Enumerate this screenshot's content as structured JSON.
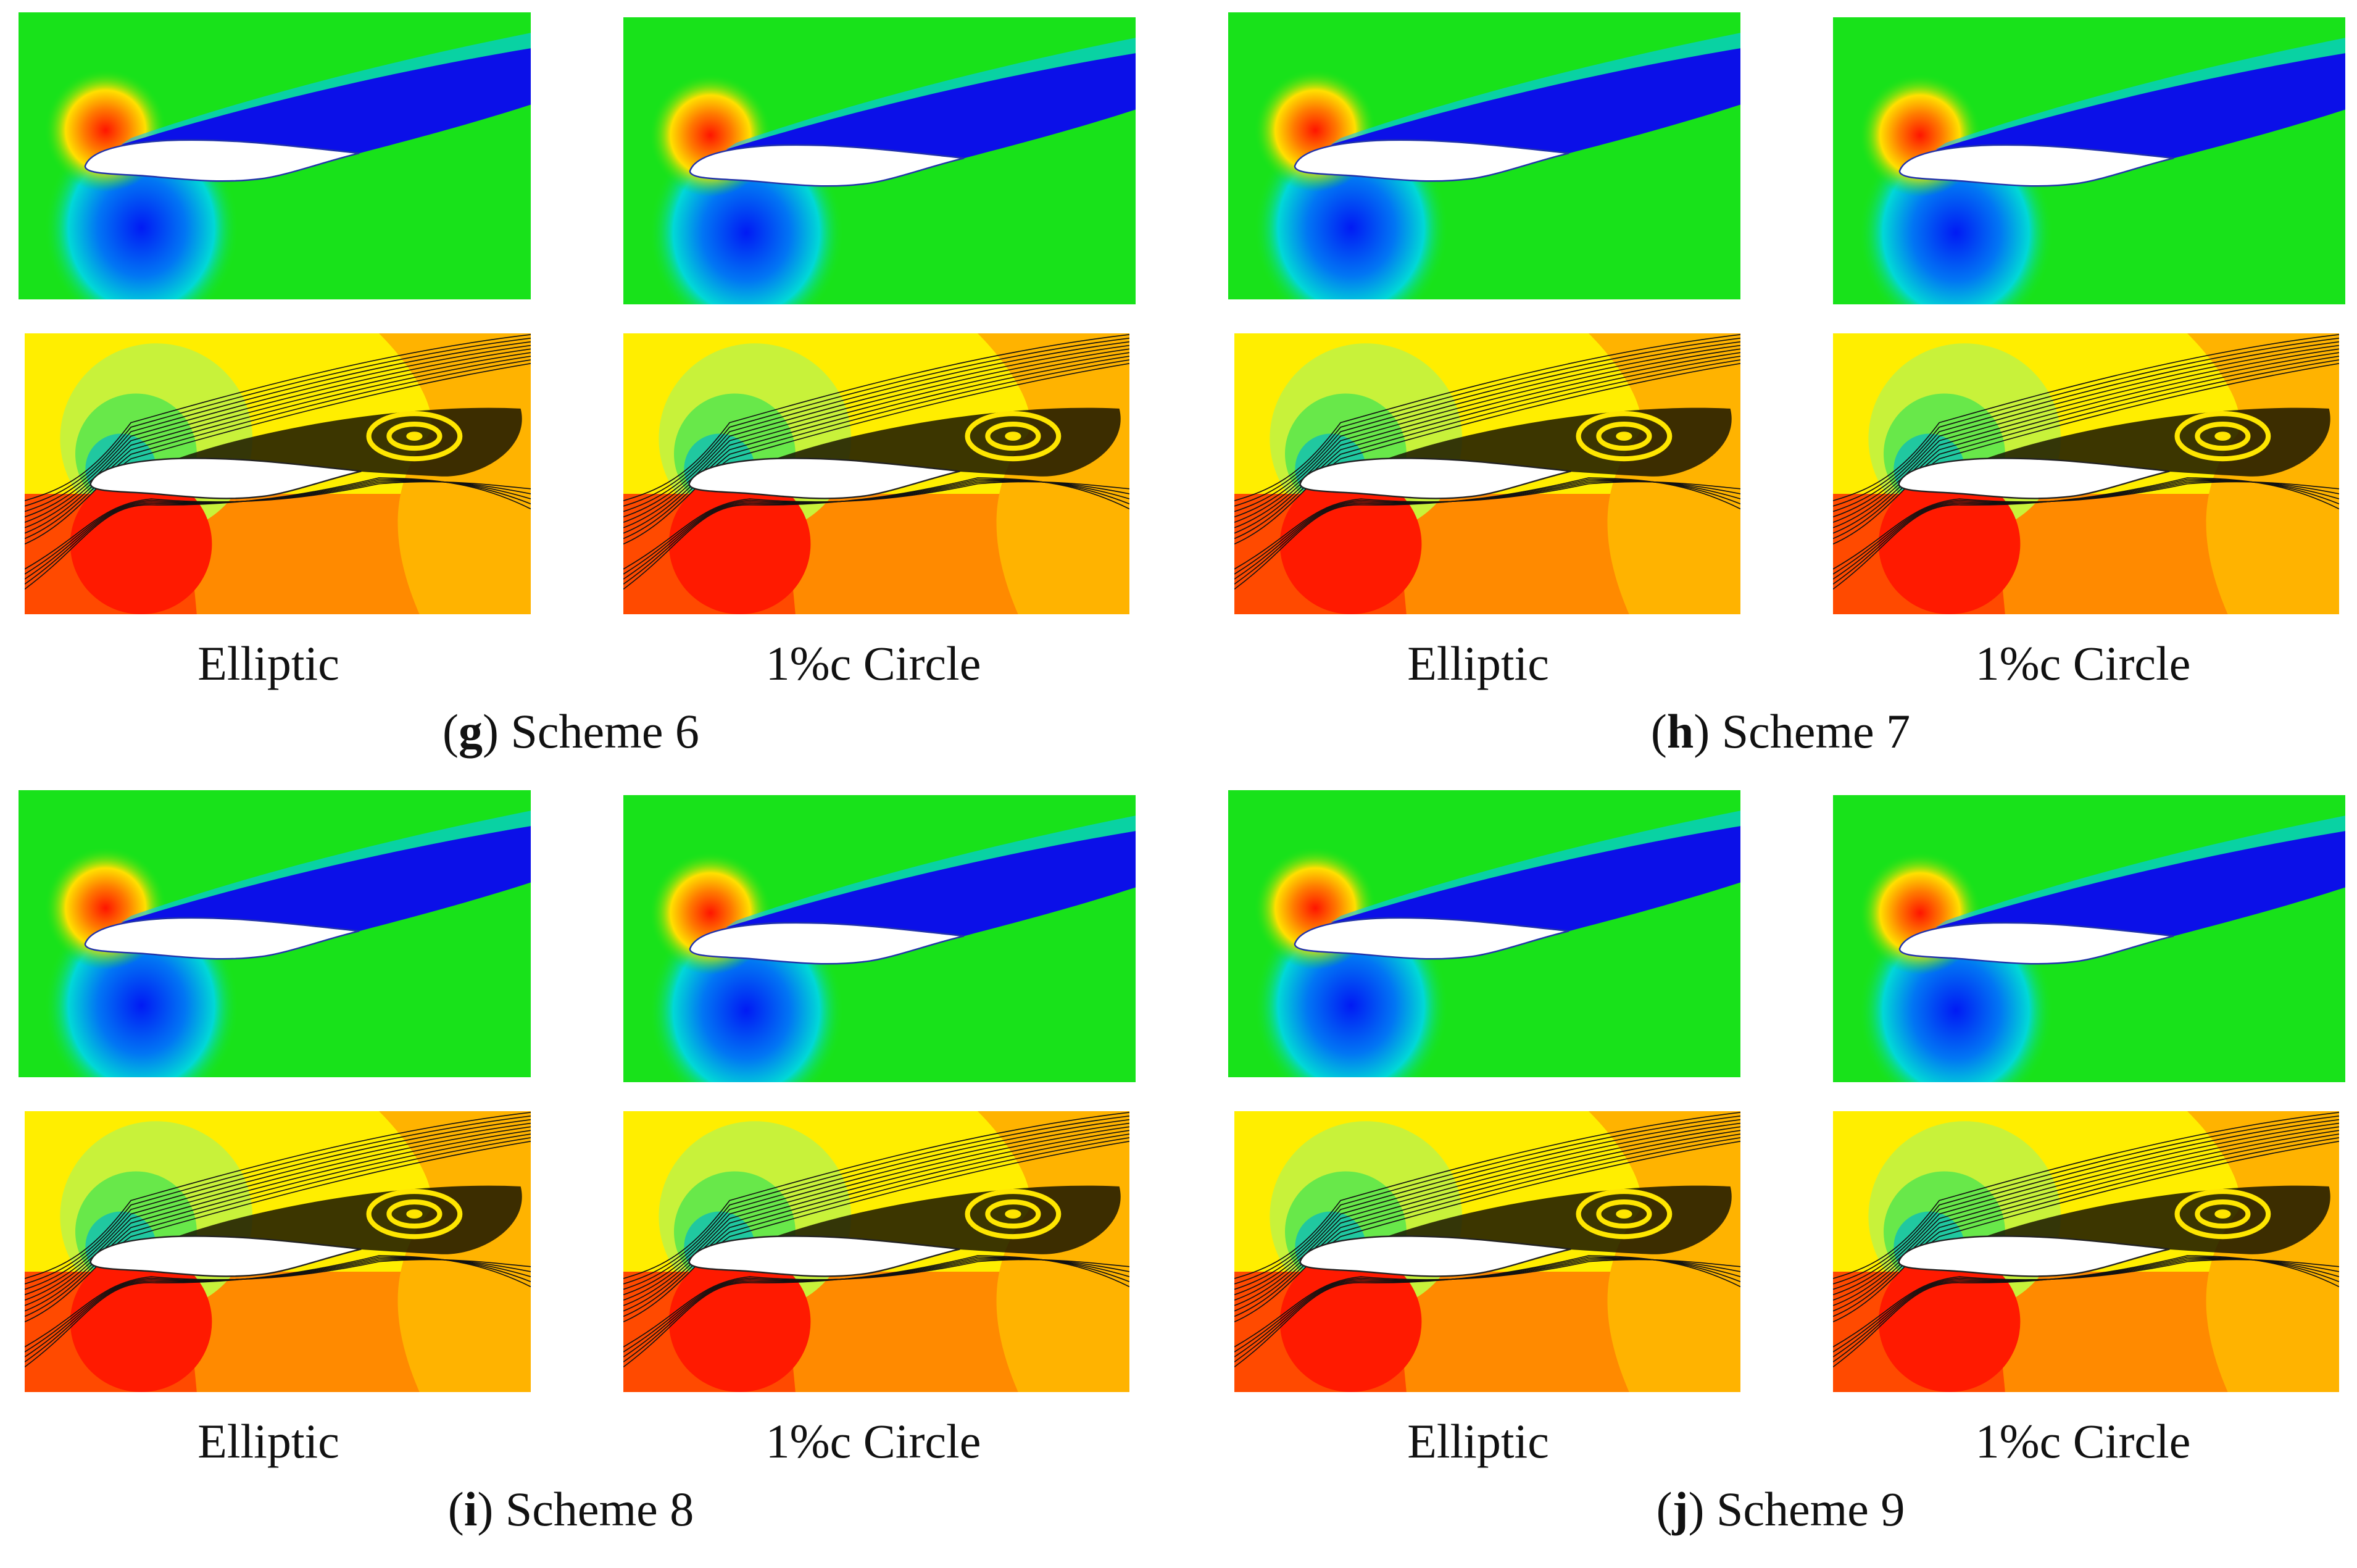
{
  "groups": [
    {
      "letter": "g",
      "caption": "Scheme 6",
      "left_label": "Elliptic",
      "right_label": "1%c Circle"
    },
    {
      "letter": "h",
      "caption": "Scheme 7",
      "left_label": "Elliptic",
      "right_label": "1%c Circle"
    },
    {
      "letter": "i",
      "caption": "Scheme 8",
      "left_label": "Elliptic",
      "right_label": "1%c Circle"
    },
    {
      "letter": "j",
      "caption": "Scheme 9",
      "left_label": "Elliptic",
      "right_label": "1%c Circle"
    }
  ],
  "colors": {
    "freestream_green": "#18e21a",
    "wake_blue": "#0b10e8",
    "stagnation_red": "#ff1a00",
    "pressure_yellow": "#ffee00",
    "pressure_orange": "#ff8a00",
    "streamline_black": "#111111"
  }
}
